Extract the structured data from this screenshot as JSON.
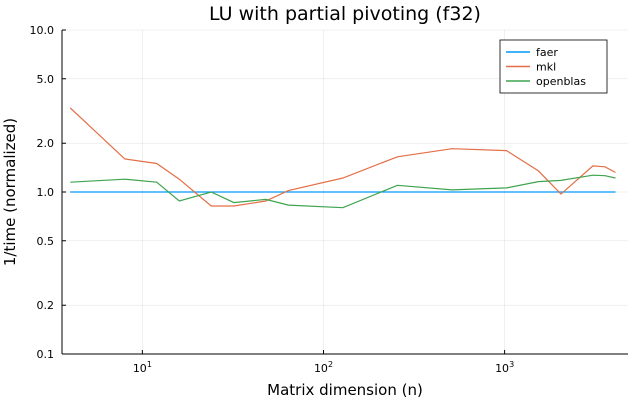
{
  "chart_data": {
    "type": "line",
    "title": "LU with partial pivoting (f32)",
    "xlabel": "Matrix dimension (n)",
    "ylabel": "1/time (normalized)",
    "xscale": "log",
    "yscale": "log",
    "xlim": [
      3.6,
      4800
    ],
    "ylim": [
      0.1,
      10.0
    ],
    "x_ticks": [
      {
        "value": 10,
        "base": "10",
        "exp": "1"
      },
      {
        "value": 100,
        "base": "10",
        "exp": "2"
      },
      {
        "value": 1000,
        "base": "10",
        "exp": "3"
      }
    ],
    "y_ticks": [
      {
        "value": 0.1,
        "label": "0.1"
      },
      {
        "value": 0.2,
        "label": "0.2"
      },
      {
        "value": 0.5,
        "label": "0.5"
      },
      {
        "value": 1.0,
        "label": "1.0"
      },
      {
        "value": 2.0,
        "label": "2.0"
      },
      {
        "value": 5.0,
        "label": "5.0"
      },
      {
        "value": 10.0,
        "label": "10.0"
      }
    ],
    "grid": true,
    "legend_position": "top-right",
    "x": [
      4,
      8,
      12,
      16,
      24,
      32,
      48,
      64,
      128,
      256,
      512,
      1024,
      1536,
      2048,
      3072,
      3584,
      4096
    ],
    "series": [
      {
        "name": "faer",
        "color": "#009AFA",
        "values": [
          1.0,
          1.0,
          1.0,
          1.0,
          1.0,
          1.0,
          1.0,
          1.0,
          1.0,
          1.0,
          1.0,
          1.0,
          1.0,
          1.0,
          1.0,
          1.0,
          1.0
        ]
      },
      {
        "name": "mkl",
        "color": "#E36F47",
        "values": [
          3.3,
          1.6,
          1.5,
          1.2,
          0.82,
          0.82,
          0.88,
          1.02,
          1.22,
          1.65,
          1.85,
          1.8,
          1.35,
          0.97,
          1.45,
          1.43,
          1.32
        ]
      },
      {
        "name": "openblas",
        "color": "#3EA44E",
        "values": [
          1.15,
          1.2,
          1.15,
          0.88,
          1.0,
          0.86,
          0.9,
          0.83,
          0.8,
          1.1,
          1.03,
          1.06,
          1.16,
          1.18,
          1.27,
          1.26,
          1.22
        ]
      }
    ]
  }
}
